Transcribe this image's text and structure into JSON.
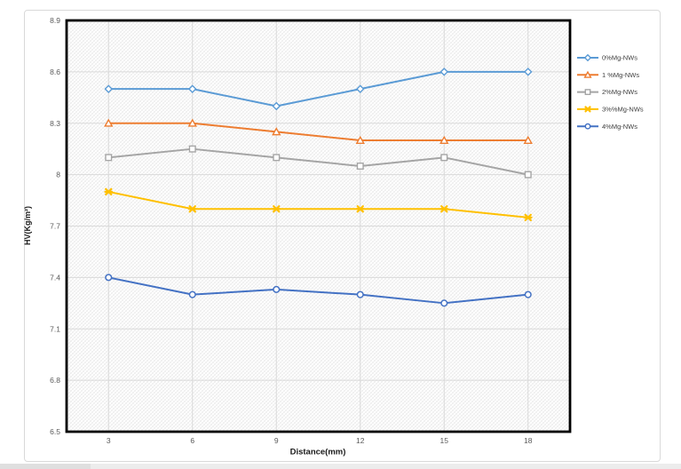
{
  "chart_data": {
    "type": "line",
    "title": "",
    "xlabel": "Distance(mm)",
    "ylabel": "HV(Kg/m²)",
    "x": [
      3,
      6,
      9,
      12,
      15,
      18
    ],
    "x_tick_labels": [
      "3",
      "6",
      "9",
      "12",
      "15",
      "18"
    ],
    "ylim": [
      6.5,
      8.9
    ],
    "ytick_step": 0.3,
    "y_tick_labels": [
      "8.9",
      "8.6",
      "8.3",
      "8",
      "7.7",
      "7.4",
      "7.1",
      "6.8",
      "6.5"
    ],
    "grid": true,
    "plot_background": "diagonal-crosshatch-pattern",
    "legend_position": "right-outside",
    "series": [
      {
        "name": "0%Mg-NWs",
        "color": "#5B9BD5",
        "marker": "diamond",
        "values": [
          8.5,
          8.5,
          8.4,
          8.5,
          8.6,
          8.6
        ]
      },
      {
        "name": "1 %Mg-NWs",
        "color": "#ED7D31",
        "marker": "triangle",
        "values": [
          8.3,
          8.3,
          8.25,
          8.2,
          8.2,
          8.2
        ]
      },
      {
        "name": "2%Mg-NWs",
        "color": "#A5A5A5",
        "marker": "square",
        "values": [
          8.1,
          8.15,
          8.1,
          8.05,
          8.1,
          8.0
        ]
      },
      {
        "name": "3%%Mg-NWs",
        "color": "#FFC000",
        "marker": "asterisk",
        "values": [
          7.9,
          7.8,
          7.8,
          7.8,
          7.8,
          7.75
        ]
      },
      {
        "name": "4%Mg-NWs",
        "color": "#4472C4",
        "marker": "circle",
        "values": [
          7.4,
          7.3,
          7.33,
          7.3,
          7.25,
          7.3
        ]
      }
    ],
    "gridline_color": "#d9d9d9",
    "plot_border_color": "#000000",
    "tick_text_color": "#595959"
  }
}
